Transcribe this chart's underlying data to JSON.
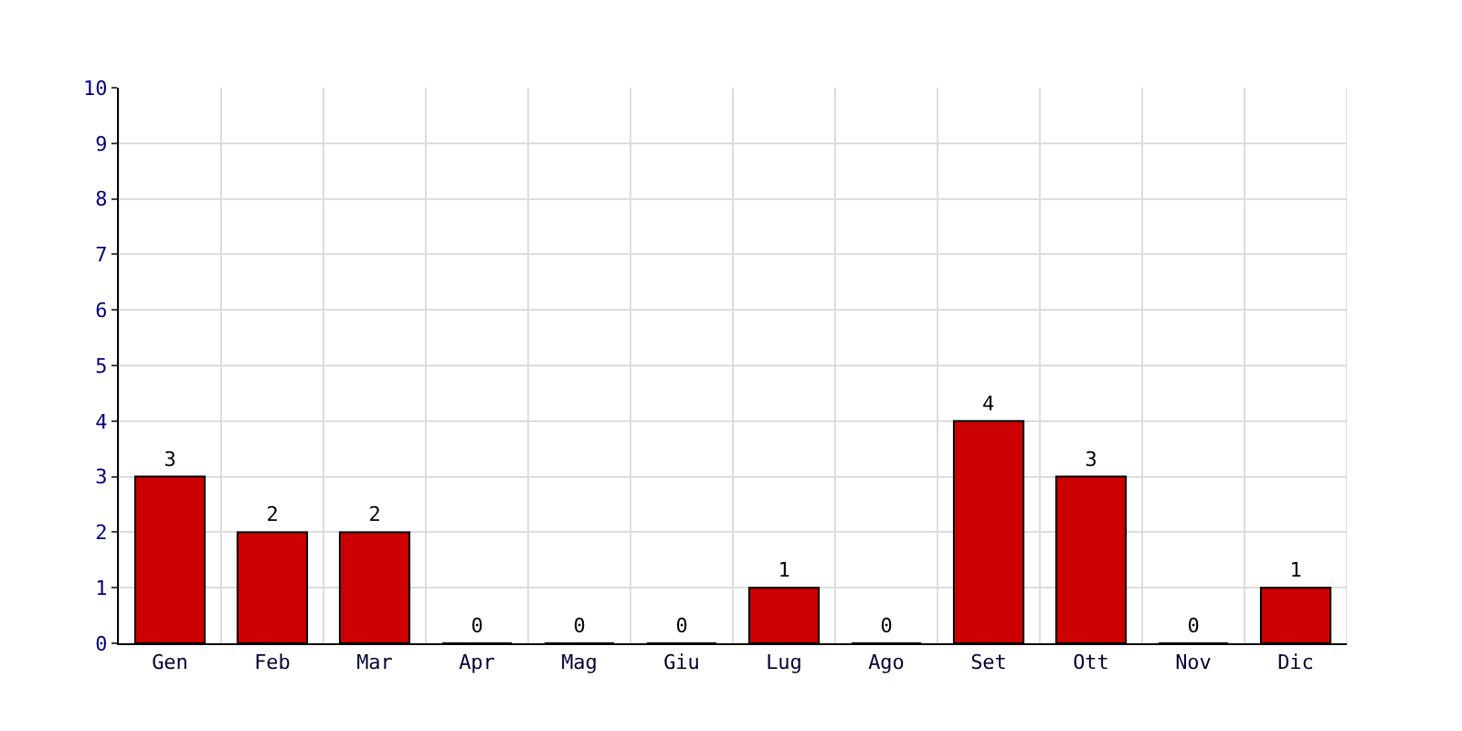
{
  "chart_data": {
    "type": "bar",
    "categories": [
      "Gen",
      "Feb",
      "Mar",
      "Apr",
      "Mag",
      "Giu",
      "Lug",
      "Ago",
      "Set",
      "Ott",
      "Nov",
      "Dic"
    ],
    "values": [
      3,
      2,
      2,
      0,
      0,
      0,
      1,
      0,
      4,
      3,
      0,
      1
    ],
    "color": "#cc0000",
    "ylim": [
      0,
      10
    ],
    "yticks": [
      0,
      1,
      2,
      3,
      4,
      5,
      6,
      7,
      8,
      9,
      10
    ],
    "grid": true,
    "data_labels": true
  }
}
